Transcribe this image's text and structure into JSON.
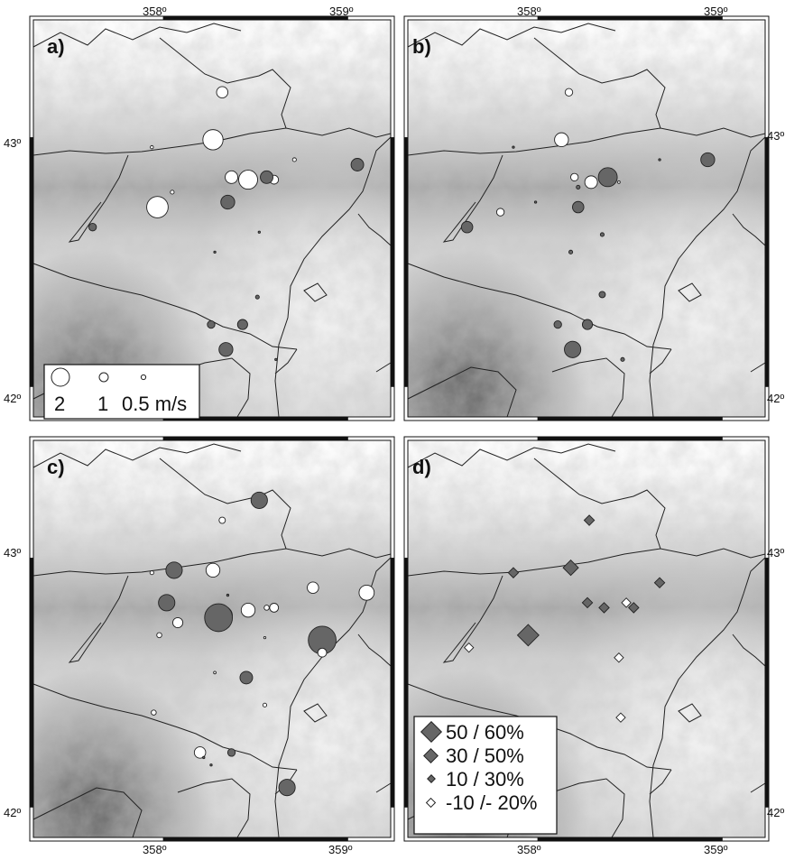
{
  "panels": [
    {
      "label": "a)",
      "legend": {
        "labels": [
          "2",
          "1",
          "0.5 m/s"
        ]
      },
      "points": [
        {
          "lon": 358.32,
          "lat": 43.18,
          "size": 0.9,
          "color": "#ffffff"
        },
        {
          "lon": 358.27,
          "lat": 42.99,
          "size": 1.6,
          "color": "#ffffff"
        },
        {
          "lon": 357.94,
          "lat": 42.96,
          "size": 0.25,
          "color": "#ffffff"
        },
        {
          "lon": 358.71,
          "lat": 42.91,
          "size": 0.3,
          "color": "#ffffff"
        },
        {
          "lon": 358.37,
          "lat": 42.84,
          "size": 1.0,
          "color": "#ffffff"
        },
        {
          "lon": 358.46,
          "lat": 42.83,
          "size": 1.5,
          "color": "#ffffff"
        },
        {
          "lon": 358.6,
          "lat": 42.83,
          "size": 0.7,
          "color": "#ffffff"
        },
        {
          "lon": 358.56,
          "lat": 42.84,
          "size": 1.0,
          "color": "#666666"
        },
        {
          "lon": 358.05,
          "lat": 42.78,
          "size": 0.3,
          "color": "#ffffff"
        },
        {
          "lon": 357.97,
          "lat": 42.72,
          "size": 1.7,
          "color": "#ffffff"
        },
        {
          "lon": 358.35,
          "lat": 42.74,
          "size": 1.1,
          "color": "#666666"
        },
        {
          "lon": 359.05,
          "lat": 42.89,
          "size": 1.0,
          "color": "#666666"
        },
        {
          "lon": 357.62,
          "lat": 42.64,
          "size": 0.6,
          "color": "#666666"
        },
        {
          "lon": 358.52,
          "lat": 42.62,
          "size": 0.1,
          "color": "#666666"
        },
        {
          "lon": 358.28,
          "lat": 42.54,
          "size": 0.15,
          "color": "#666666"
        },
        {
          "lon": 358.51,
          "lat": 42.36,
          "size": 0.3,
          "color": "#666666"
        },
        {
          "lon": 358.26,
          "lat": 42.25,
          "size": 0.6,
          "color": "#666666"
        },
        {
          "lon": 358.43,
          "lat": 42.25,
          "size": 0.8,
          "color": "#666666"
        },
        {
          "lon": 358.34,
          "lat": 42.15,
          "size": 1.1,
          "color": "#666666"
        },
        {
          "lon": 358.61,
          "lat": 42.11,
          "size": 0.1,
          "color": "#666666"
        }
      ]
    },
    {
      "label": "b)",
      "points": [
        {
          "lon": 358.17,
          "lat": 43.18,
          "size": 0.6,
          "color": "#ffffff"
        },
        {
          "lon": 358.13,
          "lat": 42.99,
          "size": 1.1,
          "color": "#ffffff"
        },
        {
          "lon": 358.2,
          "lat": 42.84,
          "size": 0.6,
          "color": "#ffffff"
        },
        {
          "lon": 358.29,
          "lat": 42.82,
          "size": 1.0,
          "color": "#ffffff"
        },
        {
          "lon": 358.38,
          "lat": 42.84,
          "size": 1.5,
          "color": "#666666"
        },
        {
          "lon": 358.44,
          "lat": 42.82,
          "size": 0.2,
          "color": "#ffffff"
        },
        {
          "lon": 358.22,
          "lat": 42.8,
          "size": 0.3,
          "color": "#666666"
        },
        {
          "lon": 357.87,
          "lat": 42.96,
          "size": 0.1,
          "color": "#666666"
        },
        {
          "lon": 357.8,
          "lat": 42.7,
          "size": 0.6,
          "color": "#ffffff"
        },
        {
          "lon": 357.99,
          "lat": 42.74,
          "size": 0.1,
          "color": "#666666"
        },
        {
          "lon": 358.22,
          "lat": 42.72,
          "size": 0.9,
          "color": "#666666"
        },
        {
          "lon": 357.62,
          "lat": 42.64,
          "size": 0.9,
          "color": "#666666"
        },
        {
          "lon": 358.35,
          "lat": 42.61,
          "size": 0.3,
          "color": "#666666"
        },
        {
          "lon": 358.18,
          "lat": 42.54,
          "size": 0.3,
          "color": "#666666"
        },
        {
          "lon": 358.35,
          "lat": 42.37,
          "size": 0.5,
          "color": "#666666"
        },
        {
          "lon": 358.92,
          "lat": 42.91,
          "size": 1.1,
          "color": "#666666"
        },
        {
          "lon": 358.66,
          "lat": 42.91,
          "size": 0.1,
          "color": "#666666"
        },
        {
          "lon": 358.11,
          "lat": 42.25,
          "size": 0.6,
          "color": "#666666"
        },
        {
          "lon": 358.27,
          "lat": 42.25,
          "size": 0.8,
          "color": "#666666"
        },
        {
          "lon": 358.19,
          "lat": 42.15,
          "size": 1.3,
          "color": "#666666"
        },
        {
          "lon": 358.46,
          "lat": 42.11,
          "size": 0.3,
          "color": "#666666"
        }
      ]
    },
    {
      "label": "c)",
      "points": [
        {
          "lon": 358.52,
          "lat": 43.23,
          "size": 1.3,
          "color": "#666666"
        },
        {
          "lon": 358.32,
          "lat": 43.15,
          "size": 0.5,
          "color": "#ffffff"
        },
        {
          "lon": 358.06,
          "lat": 42.95,
          "size": 1.3,
          "color": "#666666"
        },
        {
          "lon": 358.27,
          "lat": 42.95,
          "size": 1.1,
          "color": "#ffffff"
        },
        {
          "lon": 357.94,
          "lat": 42.94,
          "size": 0.3,
          "color": "#ffffff"
        },
        {
          "lon": 358.02,
          "lat": 42.82,
          "size": 1.3,
          "color": "#666666"
        },
        {
          "lon": 358.08,
          "lat": 42.74,
          "size": 0.8,
          "color": "#ffffff"
        },
        {
          "lon": 357.98,
          "lat": 42.69,
          "size": 0.4,
          "color": "#ffffff"
        },
        {
          "lon": 358.33,
          "lat": 42.77,
          "size": 1.3,
          "color": "#666666"
        },
        {
          "lon": 358.3,
          "lat": 42.76,
          "size": 2.2,
          "color": "#666666"
        },
        {
          "lon": 358.46,
          "lat": 42.79,
          "size": 1.1,
          "color": "#ffffff"
        },
        {
          "lon": 358.56,
          "lat": 42.8,
          "size": 0.4,
          "color": "#ffffff"
        },
        {
          "lon": 358.6,
          "lat": 42.8,
          "size": 0.7,
          "color": "#ffffff"
        },
        {
          "lon": 358.35,
          "lat": 42.85,
          "size": 0.1,
          "color": "#666666"
        },
        {
          "lon": 358.81,
          "lat": 42.88,
          "size": 0.9,
          "color": "#ffffff"
        },
        {
          "lon": 359.1,
          "lat": 42.86,
          "size": 1.2,
          "color": "#ffffff"
        },
        {
          "lon": 358.86,
          "lat": 42.67,
          "size": 2.2,
          "color": "#666666"
        },
        {
          "lon": 358.86,
          "lat": 42.62,
          "size": 0.7,
          "color": "#ffffff"
        },
        {
          "lon": 358.55,
          "lat": 42.68,
          "size": 0.1,
          "color": "#ffffff"
        },
        {
          "lon": 358.45,
          "lat": 42.52,
          "size": 1.0,
          "color": "#666666"
        },
        {
          "lon": 358.28,
          "lat": 42.54,
          "size": 0.2,
          "color": "#ffffff"
        },
        {
          "lon": 358.55,
          "lat": 42.41,
          "size": 0.3,
          "color": "#ffffff"
        },
        {
          "lon": 357.95,
          "lat": 42.38,
          "size": 0.4,
          "color": "#ffffff"
        },
        {
          "lon": 358.2,
          "lat": 42.22,
          "size": 0.9,
          "color": "#ffffff"
        },
        {
          "lon": 358.22,
          "lat": 42.2,
          "size": 0.1,
          "color": "#666666"
        },
        {
          "lon": 358.37,
          "lat": 42.22,
          "size": 0.6,
          "color": "#666666"
        },
        {
          "lon": 358.26,
          "lat": 42.17,
          "size": 0.1,
          "color": "#666666"
        },
        {
          "lon": 358.67,
          "lat": 42.08,
          "size": 1.3,
          "color": "#666666"
        }
      ]
    },
    {
      "label": "d)",
      "legend": {
        "labels": [
          "50 / 60%",
          "30 / 50%",
          "10 / 30%",
          "-10 /- 20%"
        ]
      },
      "points": [
        {
          "lon": 358.28,
          "lat": 43.15,
          "size": 0.5,
          "color": "#666666"
        },
        {
          "lon": 358.18,
          "lat": 42.96,
          "size": 1.0,
          "color": "#666666"
        },
        {
          "lon": 357.87,
          "lat": 42.94,
          "size": 0.5,
          "color": "#666666"
        },
        {
          "lon": 358.27,
          "lat": 42.82,
          "size": 0.5,
          "color": "#666666"
        },
        {
          "lon": 358.36,
          "lat": 42.8,
          "size": 0.5,
          "color": "#666666"
        },
        {
          "lon": 358.48,
          "lat": 42.82,
          "size": 0.4,
          "color": "#ffffff"
        },
        {
          "lon": 358.52,
          "lat": 42.8,
          "size": 0.5,
          "color": "#666666"
        },
        {
          "lon": 358.66,
          "lat": 42.9,
          "size": 0.5,
          "color": "#666666"
        },
        {
          "lon": 357.95,
          "lat": 42.69,
          "size": 1.6,
          "color": "#666666"
        },
        {
          "lon": 357.63,
          "lat": 42.64,
          "size": 0.4,
          "color": "#ffffff"
        },
        {
          "lon": 358.44,
          "lat": 42.6,
          "size": 0.4,
          "color": "#ffffff"
        },
        {
          "lon": 358.45,
          "lat": 42.36,
          "size": 0.4,
          "color": "#ffffff"
        }
      ]
    }
  ],
  "xticks": [
    "358º",
    "359º"
  ],
  "yticks": [
    "43º",
    "42º"
  ],
  "colors": {
    "filled": "#666666",
    "open": "#ffffff",
    "border": "#222222"
  }
}
